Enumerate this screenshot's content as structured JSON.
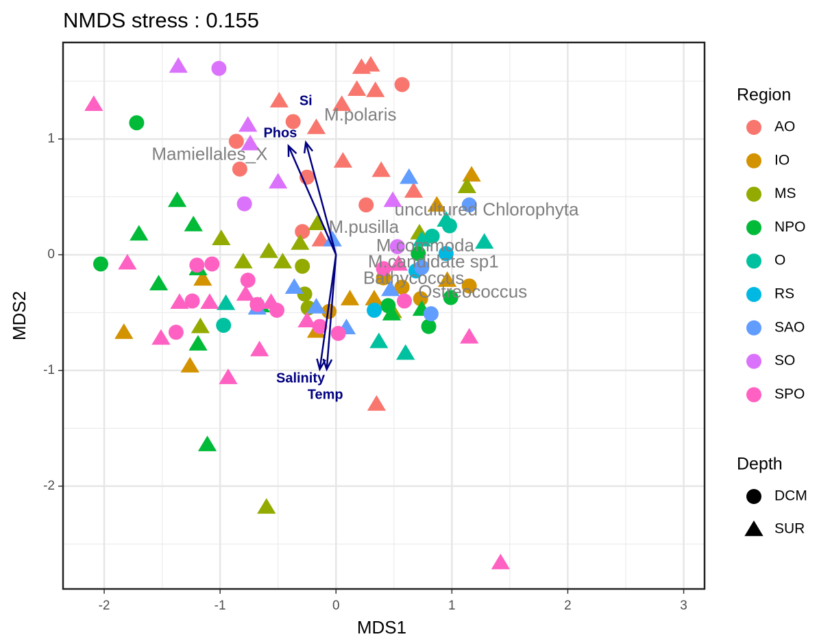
{
  "chart_data": {
    "type": "scatter",
    "title": "NMDS stress : 0.155",
    "x_label": "MDS1",
    "y_label": "MDS2",
    "xlim": [
      -2.355,
      3.18
    ],
    "ylim": [
      -2.888,
      1.834
    ],
    "xticks": [
      -2,
      -1,
      0,
      1,
      2,
      3
    ],
    "yticks": [
      -2,
      -1,
      0,
      1
    ],
    "minor_xticks": [
      -1.5,
      -0.5,
      0.5,
      1.5,
      2.5
    ],
    "minor_yticks": [
      -2.5,
      -1.5,
      -0.5,
      0.5,
      1.5
    ],
    "grid": true,
    "legend_title": "Region",
    "depth_legend": {
      "title": "Depth",
      "entries": [
        {
          "name": "DCM",
          "shape": "circle"
        },
        {
          "name": "SUR",
          "shape": "triangle"
        }
      ]
    },
    "series": [
      {
        "name": "AO",
        "color": "#F8766D",
        "x": [
          0.57,
          -0.37,
          -0.86,
          -0.83,
          -0.25,
          -0.29,
          0.26,
          0.22,
          0.3,
          0.18,
          0.34,
          0.05,
          -0.49,
          -0.17,
          0.06,
          0.39,
          0.67,
          -0.13,
          0.35
        ],
        "y": [
          1.47,
          1.15,
          0.98,
          0.74,
          0.67,
          0.2,
          0.43,
          1.62,
          1.64,
          1.43,
          1.42,
          1.3,
          1.33,
          1.1,
          0.81,
          0.73,
          0.55,
          0.13,
          -1.29
        ],
        "depth": [
          "DCM",
          "DCM",
          "DCM",
          "DCM",
          "DCM",
          "DCM",
          "DCM",
          "SUR",
          "SUR",
          "SUR",
          "SUR",
          "SUR",
          "SUR",
          "SUR",
          "SUR",
          "SUR",
          "SUR",
          "SUR",
          "SUR"
        ]
      },
      {
        "name": "IO",
        "color": "#D39200",
        "x": [
          -0.06,
          0.41,
          0.57,
          0.73,
          1.15,
          1.17,
          0.12,
          -0.17,
          -1.15,
          -1.26,
          -1.83,
          0.87,
          0.33,
          0.96
        ],
        "y": [
          -0.49,
          -0.2,
          -0.28,
          -0.38,
          -0.27,
          0.69,
          -0.38,
          -0.66,
          -0.21,
          -0.96,
          -0.67,
          0.43,
          -0.38,
          -0.22
        ],
        "depth": [
          "DCM",
          "DCM",
          "DCM",
          "DCM",
          "DCM",
          "SUR",
          "SUR",
          "SUR",
          "SUR",
          "SUR",
          "SUR",
          "SUR",
          "SUR",
          "SUR"
        ]
      },
      {
        "name": "MS",
        "color": "#93AA00",
        "x": [
          -0.29,
          -0.27,
          -0.24,
          1.13,
          -0.16,
          -0.31,
          -0.58,
          -0.46,
          -0.8,
          -0.99,
          -1.17,
          -0.6,
          0.49,
          0.72
        ],
        "y": [
          -0.1,
          -0.34,
          -0.46,
          0.59,
          0.27,
          0.1,
          0.03,
          -0.06,
          -0.06,
          0.14,
          -0.62,
          -2.18,
          -0.49,
          0.19
        ],
        "depth": [
          "DCM",
          "DCM",
          "DCM",
          "SUR",
          "SUR",
          "SUR",
          "SUR",
          "SUR",
          "SUR",
          "SUR",
          "SUR",
          "SUR",
          "SUR",
          "SUR"
        ]
      },
      {
        "name": "NPO",
        "color": "#00BA38",
        "x": [
          -1.72,
          -2.03,
          0.45,
          0.8,
          0.99,
          0.71,
          -1.37,
          -1.23,
          -1.7,
          -1.53,
          -1.19,
          -1.19,
          -1.11,
          -0.65,
          0.48,
          0.74
        ],
        "y": [
          1.14,
          -0.08,
          -0.44,
          -0.62,
          -0.37,
          0.01,
          0.47,
          0.26,
          0.18,
          -0.25,
          -0.12,
          -0.77,
          -1.64,
          -0.44,
          -0.51,
          -0.47
        ],
        "depth": [
          "DCM",
          "DCM",
          "DCM",
          "DCM",
          "DCM",
          "DCM",
          "SUR",
          "SUR",
          "SUR",
          "SUR",
          "SUR",
          "SUR",
          "SUR",
          "SUR",
          "SUR",
          "SUR"
        ]
      },
      {
        "name": "O",
        "color": "#00C19F",
        "x": [
          -0.97,
          0.83,
          0.98,
          -0.95,
          0.37,
          0.6,
          1.28,
          0.95,
          0.74
        ],
        "y": [
          -0.61,
          0.16,
          0.25,
          -0.42,
          -0.75,
          -0.85,
          0.11,
          0.3,
          0.13
        ],
        "depth": [
          "DCM",
          "DCM",
          "DCM",
          "SUR",
          "SUR",
          "SUR",
          "SUR",
          "SUR",
          "SUR"
        ]
      },
      {
        "name": "RS",
        "color": "#00B9E3",
        "x": [
          0.33,
          0.69,
          0.95
        ],
        "y": [
          -0.48,
          -0.14,
          0.01
        ],
        "depth": [
          "DCM",
          "DCM",
          "DCM"
        ]
      },
      {
        "name": "SAO",
        "color": "#619CFF",
        "x": [
          1.15,
          0.74,
          0.82,
          0.63,
          -0.03,
          -0.36,
          -0.68,
          0.09,
          -0.17,
          0.47
        ],
        "y": [
          0.43,
          -0.11,
          -0.51,
          0.67,
          0.13,
          -0.28,
          -0.46,
          -0.63,
          -0.45,
          -0.3
        ],
        "depth": [
          "DCM",
          "DCM",
          "DCM",
          "SUR",
          "SUR",
          "SUR",
          "SUR",
          "SUR",
          "SUR",
          "SUR"
        ]
      },
      {
        "name": "SO",
        "color": "#DB72FB",
        "x": [
          -1.01,
          -0.79,
          0.53,
          -1.36,
          -0.76,
          -0.74,
          -0.5,
          0.49
        ],
        "y": [
          1.61,
          0.44,
          0.07,
          1.63,
          1.12,
          0.96,
          0.63,
          0.47
        ],
        "depth": [
          "DCM",
          "DCM",
          "DCM",
          "SUR",
          "SUR",
          "SUR",
          "SUR",
          "SUR"
        ]
      },
      {
        "name": "SPO",
        "color": "#FF61C3",
        "x": [
          -1.2,
          -1.07,
          -1.24,
          -1.38,
          -0.76,
          -0.68,
          -0.51,
          -0.14,
          0.02,
          0.41,
          0.59,
          -2.09,
          -1.8,
          -1.51,
          -1.35,
          -1.09,
          -0.93,
          -0.78,
          -0.66,
          -0.56,
          -0.25,
          1.15,
          1.42,
          0.54
        ],
        "y": [
          -0.09,
          -0.08,
          -0.4,
          -0.67,
          -0.22,
          -0.43,
          -0.48,
          -0.62,
          -0.68,
          -0.12,
          -0.4,
          1.3,
          -0.07,
          -0.72,
          -0.41,
          -0.41,
          -1.06,
          -0.34,
          -0.82,
          -0.41,
          -0.57,
          -0.71,
          -2.66,
          -0.08
        ],
        "depth": [
          "DCM",
          "DCM",
          "DCM",
          "DCM",
          "DCM",
          "DCM",
          "DCM",
          "DCM",
          "DCM",
          "DCM",
          "DCM",
          "SUR",
          "SUR",
          "SUR",
          "SUR",
          "SUR",
          "SUR",
          "SUR",
          "SUR",
          "SUR",
          "SUR",
          "SUR",
          "SUR",
          "SUR"
        ]
      }
    ],
    "species": [
      {
        "label": "M.polaris",
        "x": 0.21,
        "y": 1.2
      },
      {
        "label": "Mamiellales_X",
        "x": -1.09,
        "y": 0.86
      },
      {
        "label": "uncultured Chlorophyta",
        "x": 1.3,
        "y": 0.38
      },
      {
        "label": "M.pusilla",
        "x": 0.24,
        "y": 0.23
      },
      {
        "label": "M.commoda",
        "x": 0.77,
        "y": 0.07
      },
      {
        "label": "M.candidate sp1",
        "x": 0.84,
        "y": -0.07
      },
      {
        "label": "Bathycoccus",
        "x": 0.67,
        "y": -0.21
      },
      {
        "label": "Ostreococcus",
        "x": 1.18,
        "y": -0.33
      }
    ],
    "vectors": [
      {
        "label": "Si",
        "x": -0.26,
        "y": 0.97
      },
      {
        "label": "Phos",
        "x": -0.41,
        "y": 0.94
      },
      {
        "label": "Salinity",
        "x": -0.14,
        "y": -0.99
      },
      {
        "label": "Temp",
        "x": -0.08,
        "y": -0.99
      }
    ],
    "vector_color": "#000080"
  }
}
